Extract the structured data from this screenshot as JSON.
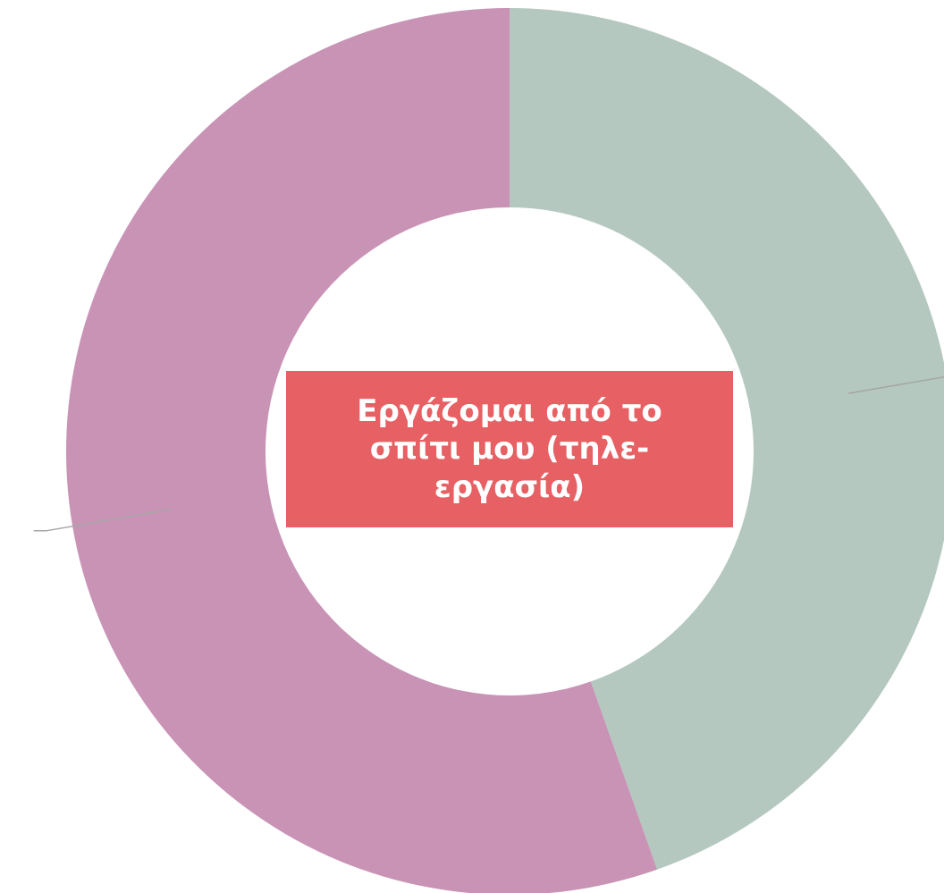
{
  "chart_data": {
    "type": "pie",
    "variant": "donut",
    "title": "Εργάζομαι από το σπίτι μου (τηλε-εργασία)",
    "slices": [
      {
        "value": 44.6,
        "unit": "percent",
        "color": "#b4c8c0"
      },
      {
        "value": 55.4,
        "unit": "percent",
        "color": "#c893b5"
      }
    ],
    "data_labels_visible": false,
    "leader_lines": true,
    "leader_line_color": "#a6a6a6",
    "title_box_color": "#e76063",
    "title_text_color": "#ffffff",
    "legend": "none"
  }
}
